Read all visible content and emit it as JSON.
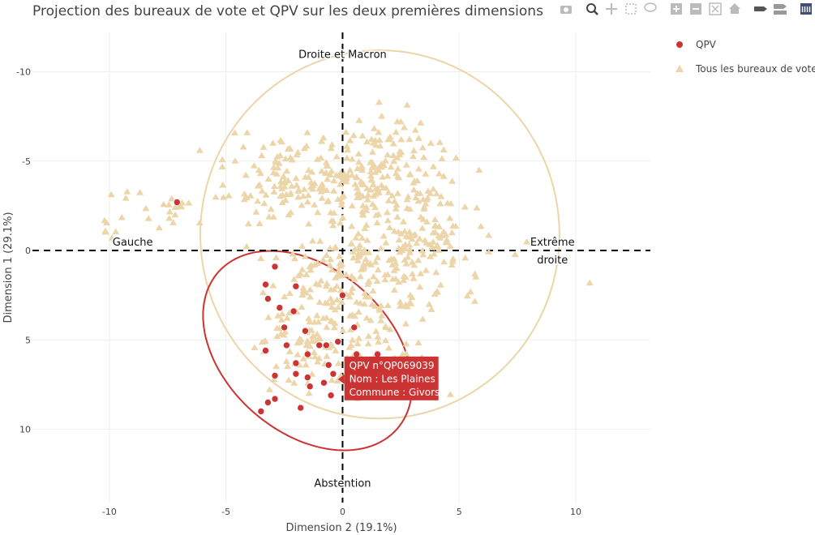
{
  "chart_data": {
    "type": "scatter",
    "title": "Projection des bureaux de vote et QPV sur les deux premières dimensions",
    "xlabel": "Dimension 2 (19.1%)",
    "ylabel": "Dimension 1 (29.1%)",
    "xlim": [
      -13.3,
      13.2
    ],
    "ylim": [
      -12.2,
      14.1
    ],
    "y_reversed": true,
    "x_ticks": [
      -10,
      -5,
      0,
      5,
      10
    ],
    "y_ticks": [
      -10,
      -5,
      0,
      5,
      10
    ],
    "grid": true,
    "legend_position": "top-right",
    "colors": {
      "qpv": "#cc3333",
      "bureaux": "#ecd5a8",
      "bureaux_ellipse": "#ecd5a8",
      "qpv_ellipse": "#cc3333"
    },
    "annotations": [
      {
        "text": "Droite et Macron",
        "x": 0,
        "y": -11
      },
      {
        "text": "Gauche",
        "x": -9,
        "y": -0.5
      },
      {
        "text": "Extrême",
        "x": 9,
        "y": -0.5
      },
      {
        "text": "droite",
        "x": 9,
        "y": 0.5
      },
      {
        "text": "Abstention",
        "x": 0,
        "y": 13
      }
    ],
    "ellipses": [
      {
        "name": "bureaux",
        "cx": 1.6,
        "cy": -0.9,
        "rx": 7.7,
        "ry": 10.3,
        "angle": 0
      },
      {
        "name": "qpv",
        "cx": -1.5,
        "cy": 5.6,
        "rx": 6.0,
        "ry": 3.9,
        "angle": 61
      }
    ],
    "series": [
      {
        "name": "QPV",
        "marker": "circle",
        "points": [
          [
            -7.1,
            -2.7
          ],
          [
            -2.9,
            0.9
          ],
          [
            -3.3,
            1.9
          ],
          [
            -2.0,
            2.0
          ],
          [
            -3.2,
            2.7
          ],
          [
            -2.7,
            3.2
          ],
          [
            -2.1,
            3.4
          ],
          [
            0.0,
            2.5
          ],
          [
            0.5,
            4.3
          ],
          [
            -2.5,
            4.3
          ],
          [
            -1.6,
            4.5
          ],
          [
            -2.4,
            5.3
          ],
          [
            -1.0,
            5.3
          ],
          [
            -0.7,
            5.3
          ],
          [
            -0.2,
            5.1
          ],
          [
            -3.3,
            5.6
          ],
          [
            -1.5,
            5.8
          ],
          [
            0.6,
            5.8
          ],
          [
            1.5,
            5.8
          ],
          [
            -2.0,
            6.3
          ],
          [
            -0.6,
            6.4
          ],
          [
            -2.9,
            7.0
          ],
          [
            -2.0,
            6.9
          ],
          [
            -0.4,
            6.9
          ],
          [
            -1.5,
            7.1
          ],
          [
            -0.8,
            7.4
          ],
          [
            -1.4,
            7.6
          ],
          [
            -0.5,
            8.1
          ],
          [
            -2.9,
            8.3
          ],
          [
            -3.2,
            8.5
          ],
          [
            -1.8,
            8.8
          ],
          [
            -3.5,
            9.0
          ]
        ]
      },
      {
        "name": "Tous les bureaux de vote",
        "marker": "triangle",
        "points": []
      }
    ]
  },
  "tooltip": {
    "lines": [
      "QPV n°QP069039",
      "Nom : Les Plaines",
      "Commune : Givors"
    ],
    "anchor": [
      -0.2,
      7.2
    ],
    "color": "#cc3333"
  },
  "toolbar": {
    "icons": [
      "camera-icon",
      "zoom-icon",
      "pan-icon",
      "box-select-icon",
      "lasso-select-icon",
      "zoom-in-icon",
      "zoom-out-icon",
      "autoscale-icon",
      "reset-axes-icon",
      "spike-lines-icon",
      "compare-hover-icon",
      "plotly-logo-icon"
    ]
  }
}
